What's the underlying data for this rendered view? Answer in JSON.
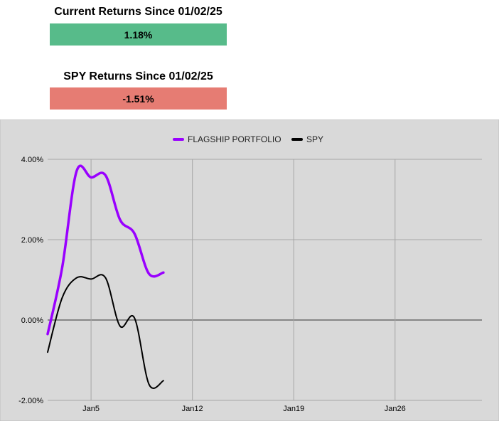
{
  "stats": [
    {
      "title": "Current Returns Since 01/02/25",
      "value": "1.18%",
      "color": "#57bb8a"
    },
    {
      "title": "SPY Returns Since 01/02/25",
      "value": "-1.51%",
      "color": "#e67c73"
    }
  ],
  "chart_data": {
    "type": "line",
    "background": "#d9d9d9",
    "grid": true,
    "legend_position": "top",
    "xlim": [
      "2025-01-01",
      "2025-01-31"
    ],
    "ylim": [
      -2,
      4
    ],
    "y_ticks": [
      "4.00%",
      "2.00%",
      "0.00%",
      "-2.00%"
    ],
    "y_tick_values": [
      4,
      2,
      0,
      -2
    ],
    "x_ticks": [
      "Jan5",
      "Jan12",
      "Jan19",
      "Jan26"
    ],
    "x_tick_values": [
      "2025-01-04",
      "2025-01-11",
      "2025-01-18",
      "2025-01-25"
    ],
    "series": [
      {
        "name": "FLAGSHIP PORTFOLIO",
        "color": "#9900ff",
        "x": [
          "2025-01-01",
          "2025-01-02",
          "2025-01-03",
          "2025-01-04",
          "2025-01-05",
          "2025-01-06",
          "2025-01-07",
          "2025-01-08",
          "2025-01-09"
        ],
        "values": [
          -0.35,
          1.3,
          3.7,
          3.55,
          3.6,
          2.5,
          2.15,
          1.15,
          1.18
        ]
      },
      {
        "name": "SPY",
        "color": "#000000",
        "x": [
          "2025-01-01",
          "2025-01-02",
          "2025-01-03",
          "2025-01-04",
          "2025-01-05",
          "2025-01-06",
          "2025-01-07",
          "2025-01-08",
          "2025-01-09"
        ],
        "values": [
          -0.8,
          0.55,
          1.05,
          1.02,
          1.05,
          -0.15,
          0.05,
          -1.6,
          -1.51
        ]
      }
    ]
  }
}
